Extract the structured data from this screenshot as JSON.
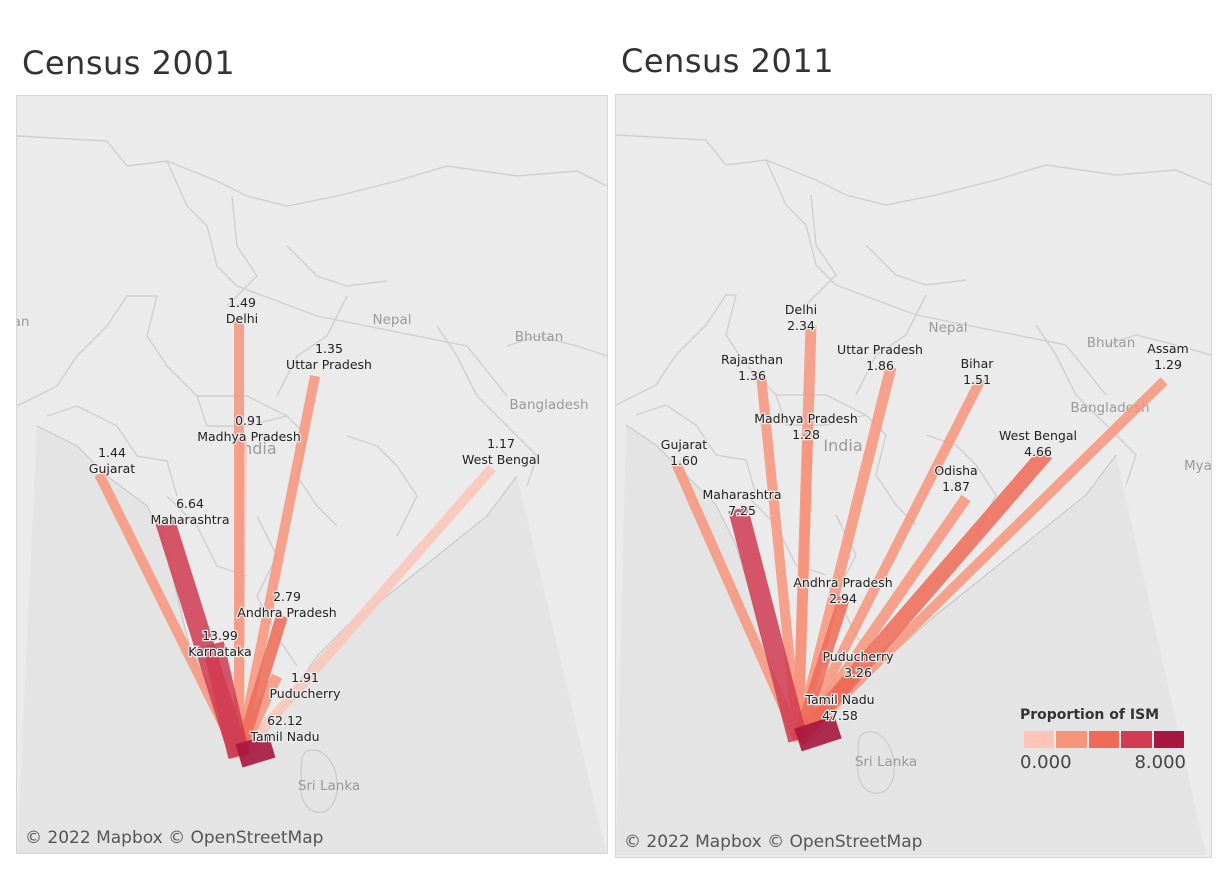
{
  "panels": [
    {
      "id": "2001",
      "title": "Census 2001",
      "attribution": "© 2022 Mapbox © OpenStreetMap",
      "map_labels": [
        "Nepal",
        "Bhutan",
        "Bangladesh",
        "India",
        "Sri Lanka",
        "an"
      ]
    },
    {
      "id": "2011",
      "title": "Census 2011",
      "attribution": "© 2022 Mapbox © OpenStreetMap",
      "map_labels": [
        "Nepal",
        "Bhutan",
        "Bangladesh",
        "India",
        "Sri Lanka",
        "Mya"
      ]
    }
  ],
  "legend": {
    "title": "Proportion of ISM",
    "min_label": "0.000",
    "max_label": "8.000",
    "colors": [
      "#fcc5b8",
      "#f7957c",
      "#ef6a57",
      "#d23c52",
      "#a8173f"
    ]
  },
  "map_data": [
    {
      "panel": "2001",
      "destination": "Tamil Nadu",
      "flows": [
        {
          "state": "Delhi",
          "value": "1.49"
        },
        {
          "state": "Uttar Pradesh",
          "value": "1.35"
        },
        {
          "state": "Madhya Pradesh",
          "value": "0.91"
        },
        {
          "state": "Gujarat",
          "value": "1.44"
        },
        {
          "state": "West Bengal",
          "value": "1.17"
        },
        {
          "state": "Maharashtra",
          "value": "6.64"
        },
        {
          "state": "Andhra Pradesh",
          "value": "2.79"
        },
        {
          "state": "Karnataka",
          "value": "13.99"
        },
        {
          "state": "Puducherry",
          "value": "1.91"
        },
        {
          "state": "Tamil Nadu",
          "value": "62.12"
        }
      ]
    },
    {
      "panel": "2011",
      "destination": "Tamil Nadu",
      "flows": [
        {
          "state": "Delhi",
          "value": "2.34"
        },
        {
          "state": "Rajasthan",
          "value": "1.36"
        },
        {
          "state": "Uttar Pradesh",
          "value": "1.86"
        },
        {
          "state": "Bihar",
          "value": "1.51"
        },
        {
          "state": "Assam",
          "value": "1.29"
        },
        {
          "state": "Madhya Pradesh",
          "value": "1.28"
        },
        {
          "state": "Gujarat",
          "value": "1.60"
        },
        {
          "state": "West Bengal",
          "value": "4.66"
        },
        {
          "state": "Odisha",
          "value": "1.87"
        },
        {
          "state": "Maharashtra",
          "value": "7.25"
        },
        {
          "state": "Andhra Pradesh",
          "value": "2.94"
        },
        {
          "state": "Puducherry",
          "value": "3.26"
        },
        {
          "state": "Tamil Nadu",
          "value": "47.58"
        }
      ]
    }
  ]
}
